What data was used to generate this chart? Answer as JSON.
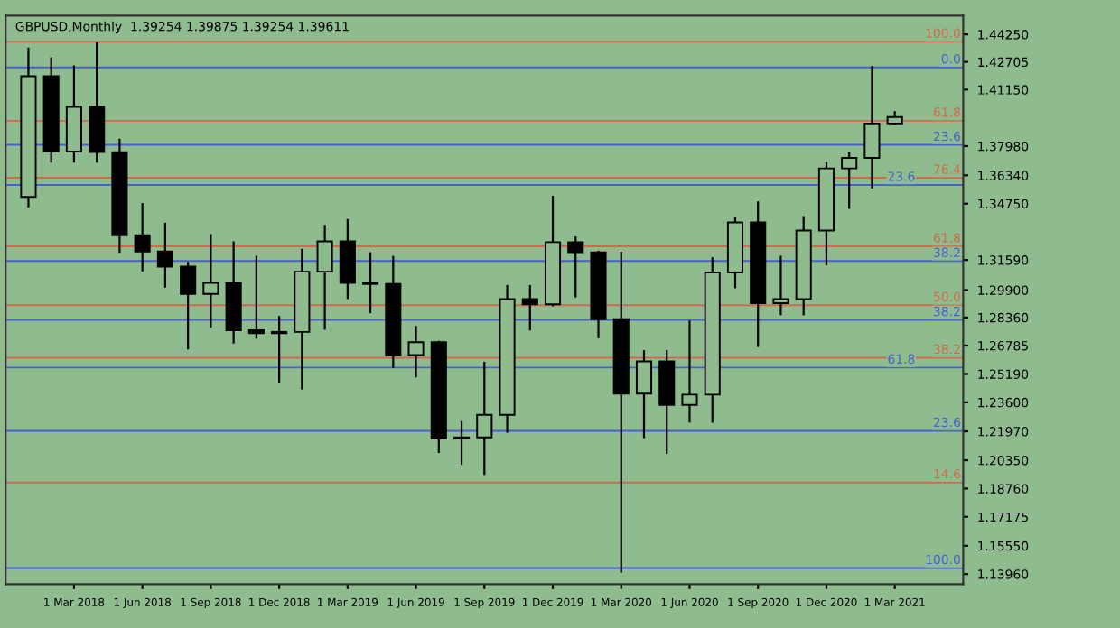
{
  "chart_data": {
    "type": "candlestick",
    "title": "GBPUSD,Monthly  1.39254 1.39875 1.39254 1.39611",
    "categories": [
      null,
      null,
      "1 Mar 2018",
      null,
      null,
      "1 Jun 2018",
      null,
      null,
      "1 Sep 2018",
      null,
      null,
      "1 Dec 2018",
      null,
      null,
      "1 Mar 2019",
      null,
      null,
      "1 Jun 2019",
      null,
      null,
      "1 Sep 2019",
      null,
      null,
      "1 Dec 2019",
      null,
      null,
      "1 Mar 2020",
      null,
      null,
      "1 Jun 2020",
      null,
      null,
      "1 Sep 2020",
      null,
      null,
      "1 Dec 2020",
      null,
      null,
      "1 Mar 2021"
    ],
    "ohlc": [
      [
        1.3513,
        1.4345,
        1.346,
        1.419
      ],
      [
        1.419,
        1.4291,
        1.3711,
        1.3768
      ],
      [
        1.3768,
        1.4245,
        1.3711,
        1.4018
      ],
      [
        1.4018,
        1.4377,
        1.3711,
        1.3764
      ],
      [
        1.3764,
        1.3834,
        1.3205,
        1.3298
      ],
      [
        1.3298,
        1.3473,
        1.31,
        1.3206
      ],
      [
        1.3206,
        1.3363,
        1.301,
        1.3122
      ],
      [
        1.3122,
        1.3142,
        1.2662,
        1.2968
      ],
      [
        1.2968,
        1.3298,
        1.2785,
        1.303
      ],
      [
        1.303,
        1.3258,
        1.2696,
        1.2765
      ],
      [
        1.2765,
        1.3176,
        1.2723,
        1.2748
      ],
      [
        1.2748,
        1.2839,
        1.2477,
        1.2755
      ],
      [
        1.2755,
        1.3216,
        1.2438,
        1.3093
      ],
      [
        1.3093,
        1.335,
        1.2773,
        1.3263
      ],
      [
        1.3263,
        1.3383,
        1.2945,
        1.303
      ],
      [
        1.303,
        1.3197,
        1.2866,
        1.3024
      ],
      [
        1.3024,
        1.3176,
        1.2559,
        1.2625
      ],
      [
        1.2625,
        1.2783,
        1.2506,
        1.2697
      ],
      [
        1.2697,
        1.27,
        1.2081,
        1.2157
      ],
      [
        1.2157,
        1.2249,
        1.2015,
        1.2163
      ],
      [
        1.2163,
        1.2582,
        1.1958,
        1.229
      ],
      [
        1.229,
        1.3013,
        1.2195,
        1.294
      ],
      [
        1.294,
        1.3013,
        1.2769,
        1.291
      ],
      [
        1.291,
        1.3514,
        1.2905,
        1.3259
      ],
      [
        1.3259,
        1.3285,
        1.2954,
        1.3202
      ],
      [
        1.3202,
        1.3205,
        1.2725,
        1.2827
      ],
      [
        1.2827,
        1.32,
        1.1409,
        1.2409
      ],
      [
        1.2409,
        1.2647,
        1.2165,
        1.259
      ],
      [
        1.259,
        1.2648,
        1.2076,
        1.2345
      ],
      [
        1.2345,
        1.2813,
        1.2252,
        1.2403
      ],
      [
        1.2403,
        1.3169,
        1.2251,
        1.3089
      ],
      [
        1.3089,
        1.3394,
        1.3006,
        1.337
      ],
      [
        1.337,
        1.3482,
        1.2676,
        1.2916
      ],
      [
        1.2916,
        1.3177,
        1.2855,
        1.294
      ],
      [
        1.294,
        1.3399,
        1.2854,
        1.3324
      ],
      [
        1.3324,
        1.3704,
        1.3134,
        1.3673
      ],
      [
        1.3673,
        1.3759,
        1.3451,
        1.3732
      ],
      [
        1.3732,
        1.4241,
        1.3566,
        1.3925
      ],
      [
        1.3925,
        1.3988,
        1.3925,
        1.3961
      ]
    ],
    "colors": [
      "#8fbc8f",
      "#000000",
      "#8fbc8f",
      "#000000",
      "#000000",
      "#000000",
      "#000000",
      "#000000",
      "#8fbc8f",
      "#000000",
      "#000000",
      "#8fbc8f",
      "#8fbc8f",
      "#8fbc8f",
      "#000000",
      "#000000",
      "#000000",
      "#8fbc8f",
      "#000000",
      "#8fbc8f",
      "#8fbc8f",
      "#8fbc8f",
      "#000000",
      "#8fbc8f",
      "#000000",
      "#000000",
      "#000000",
      "#8fbc8f",
      "#000000",
      "#8fbc8f",
      "#8fbc8f",
      "#8fbc8f",
      "#000000",
      "#8fbc8f",
      "#8fbc8f",
      "#8fbc8f",
      "#8fbc8f",
      "#8fbc8f",
      "#8fbc8f"
    ],
    "ylim": [
      1.134,
      1.453
    ],
    "yticks": [
      {
        "value": 1.4425,
        "label": "1.44250"
      },
      {
        "value": 1.42705,
        "label": "1.42705"
      },
      {
        "value": 1.4115,
        "label": "1.41150"
      },
      {
        "value": 1.3798,
        "label": "1.37980"
      },
      {
        "value": 1.3634,
        "label": "1.36340"
      },
      {
        "value": 1.3475,
        "label": "1.34750"
      },
      {
        "value": 1.3159,
        "label": "1.31590"
      },
      {
        "value": 1.299,
        "label": "1.29900"
      },
      {
        "value": 1.2836,
        "label": "1.28360"
      },
      {
        "value": 1.26785,
        "label": "1.26785"
      },
      {
        "value": 1.2519,
        "label": "1.25190"
      },
      {
        "value": 1.236,
        "label": "1.23600"
      },
      {
        "value": 1.2197,
        "label": "1.21970"
      },
      {
        "value": 1.2035,
        "label": "1.20350"
      },
      {
        "value": 1.1876,
        "label": "1.18760"
      },
      {
        "value": 1.17175,
        "label": "1.17175"
      },
      {
        "value": 1.1555,
        "label": "1.15550"
      },
      {
        "value": 1.1396,
        "label": "1.13960"
      }
    ],
    "ref_lines": [
      {
        "axis": "y",
        "value": 1.4384,
        "color": "#d2694b"
      },
      {
        "axis": "y",
        "value": 1.424,
        "color": "#4a5fd0"
      },
      {
        "axis": "y",
        "value": 1.394,
        "color": "#d2694b"
      },
      {
        "axis": "y",
        "value": 1.3805,
        "color": "#4a5fd0"
      },
      {
        "axis": "y",
        "value": 1.362,
        "color": "#d2694b"
      },
      {
        "axis": "y",
        "value": 1.358,
        "color": "#4a5fd0"
      },
      {
        "axis": "y",
        "value": 1.3236,
        "color": "#d2694b"
      },
      {
        "axis": "y",
        "value": 1.3153,
        "color": "#4a5fd0"
      },
      {
        "axis": "y",
        "value": 1.2905,
        "color": "#d2694b"
      },
      {
        "axis": "y",
        "value": 1.2822,
        "color": "#4a5fd0"
      },
      {
        "axis": "y",
        "value": 1.261,
        "color": "#d2694b"
      },
      {
        "axis": "y",
        "value": 1.2555,
        "color": "#4a5fd0"
      },
      {
        "axis": "y",
        "value": 1.22,
        "color": "#4a5fd0"
      },
      {
        "axis": "y",
        "value": 1.191,
        "color": "#d2694b"
      },
      {
        "axis": "y",
        "value": 1.143,
        "color": "#4a5fd0"
      }
    ],
    "annotations": [
      {
        "text": "100.0",
        "y": 1.4384
      },
      {
        "text": "0.0",
        "y": 1.424
      },
      {
        "text": "61.8",
        "y": 1.394
      },
      {
        "text": "23.6",
        "y": 1.3805
      },
      {
        "text": "76.4",
        "y": 1.362
      },
      {
        "text": "23.6",
        "y": 1.358
      },
      {
        "text": "61.8",
        "y": 1.3236
      },
      {
        "text": "38.2",
        "y": 1.3153
      },
      {
        "text": "50.0",
        "y": 1.2905
      },
      {
        "text": "38.2",
        "y": 1.2822
      },
      {
        "text": "38.2",
        "y": 1.261
      },
      {
        "text": "61.8",
        "y": 1.2555
      },
      {
        "text": "23.6",
        "y": 1.22
      },
      {
        "text": "14.6",
        "y": 1.191
      },
      {
        "text": "100.0",
        "y": 1.143
      }
    ],
    "grid": false
  }
}
